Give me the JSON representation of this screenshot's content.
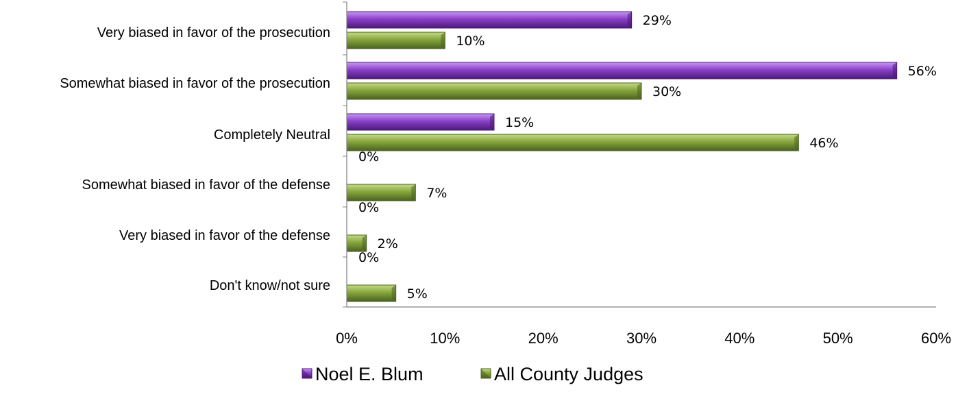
{
  "chart_data": {
    "type": "bar",
    "orientation": "horizontal",
    "categories": [
      "Very biased in favor of the prosecution",
      "Somewhat biased in favor of the prosecution",
      "Completely Neutral",
      "Somewhat biased in favor of the defense",
      "Very biased in favor of the defense",
      "Don't know/not sure"
    ],
    "series": [
      {
        "name": "Noel E. Blum",
        "values": [
          29,
          56,
          15,
          0,
          0,
          0
        ],
        "labels": [
          "29%",
          "56%",
          "15%",
          "0%",
          "0%",
          "0%"
        ],
        "color": "#8a3fc9",
        "color_light": "#c79af0",
        "color_dark": "#4b1a78"
      },
      {
        "name": "All County Judges",
        "values": [
          10,
          30,
          46,
          7,
          2,
          5
        ],
        "labels": [
          "10%",
          "30%",
          "46%",
          "7%",
          "2%",
          "5%"
        ],
        "color": "#86a63d",
        "color_light": "#c6dc8a",
        "color_dark": "#4b6220"
      }
    ],
    "x_ticks": [
      "0%",
      "10%",
      "20%",
      "30%",
      "40%",
      "50%",
      "60%"
    ],
    "xlim": [
      0,
      60
    ],
    "title": "",
    "xlabel": "",
    "ylabel": "",
    "grid": false,
    "legend_position": "bottom"
  }
}
